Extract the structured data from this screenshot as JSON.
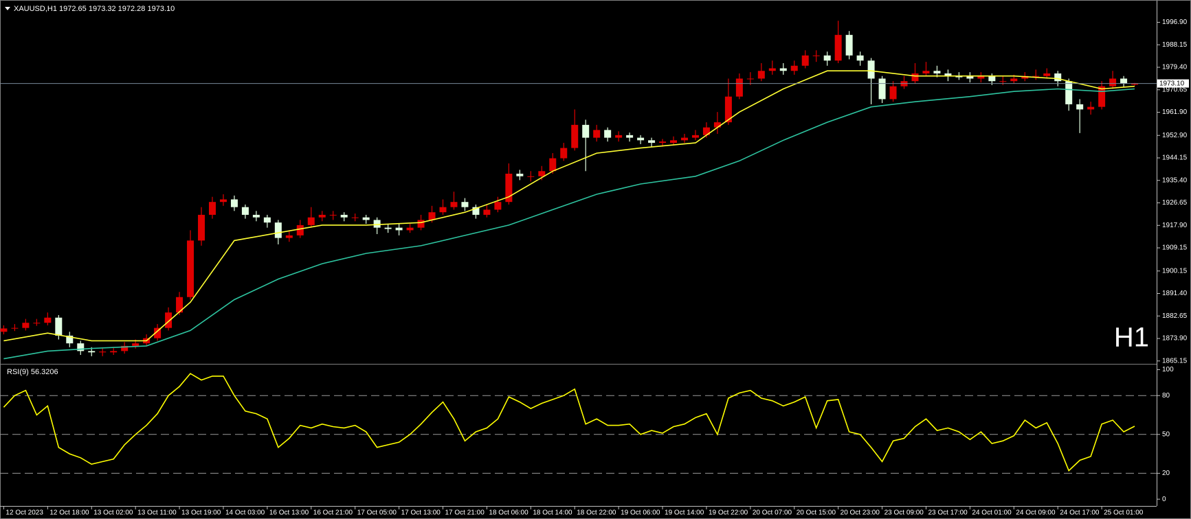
{
  "chart_data": [
    {
      "type": "candlestick",
      "title": "XAUUSD,H1  1972.65 1973.32 1972.28 1973.10",
      "annotation": "H1",
      "annotation_color": "#e00000",
      "up_color": "#e00000",
      "down_color": "#e2ffe2",
      "ohlc": [
        [
          1876.5,
          1879,
          1875.5,
          1877.8
        ],
        [
          1877.8,
          1879.5,
          1876.8,
          1878
        ],
        [
          1878,
          1881.5,
          1877,
          1880
        ],
        [
          1880,
          1881.5,
          1878.8,
          1880
        ],
        [
          1880,
          1884,
          1879,
          1882
        ],
        [
          1882,
          1883,
          1873.5,
          1875
        ],
        [
          1875,
          1876.5,
          1870.5,
          1872
        ],
        [
          1872,
          1873,
          1867.5,
          1869
        ],
        [
          1869,
          1870.5,
          1867,
          1868.5
        ],
        [
          1868.5,
          1870,
          1867,
          1868.8
        ],
        [
          1868.5,
          1870.5,
          1867.5,
          1869
        ],
        [
          1869,
          1872.5,
          1868,
          1871
        ],
        [
          1871,
          1873.5,
          1870,
          1872
        ],
        [
          1872,
          1875.5,
          1871,
          1874
        ],
        [
          1874,
          1879.5,
          1873,
          1878
        ],
        [
          1878,
          1886,
          1877,
          1884
        ],
        [
          1884,
          1892,
          1883,
          1890
        ],
        [
          1890,
          1916,
          1889,
          1912
        ],
        [
          1912,
          1925,
          1910,
          1922
        ],
        [
          1922,
          1929,
          1920.5,
          1927
        ],
        [
          1927,
          1930,
          1925.5,
          1928
        ],
        [
          1928,
          1929.5,
          1923.5,
          1925
        ],
        [
          1925,
          1926,
          1920.5,
          1922
        ],
        [
          1922,
          1923.5,
          1919.5,
          1921
        ],
        [
          1921,
          1922,
          1917,
          1919
        ],
        [
          1919,
          1920,
          1910.5,
          1913
        ],
        [
          1913,
          1916,
          1911.5,
          1914
        ],
        [
          1914,
          1920,
          1913,
          1918
        ],
        [
          1918,
          1925,
          1917,
          1921
        ],
        [
          1921,
          1923.5,
          1919.5,
          1922
        ],
        [
          1922,
          1923.5,
          1920,
          1922
        ],
        [
          1922,
          1923,
          1919.5,
          1921
        ],
        [
          1921,
          1922.5,
          1919.5,
          1921
        ],
        [
          1921,
          1922,
          1918.5,
          1920
        ],
        [
          1920,
          1921,
          1914.5,
          1917
        ],
        [
          1917,
          1918.5,
          1915,
          1916.5
        ],
        [
          1917,
          1918.5,
          1914,
          1916
        ],
        [
          1916,
          1918.5,
          1915,
          1917
        ],
        [
          1917,
          1922,
          1916,
          1920
        ],
        [
          1920,
          1925.5,
          1919,
          1923
        ],
        [
          1923,
          1928,
          1922,
          1925
        ],
        [
          1925,
          1931,
          1924,
          1927
        ],
        [
          1927,
          1928.5,
          1923.5,
          1925
        ],
        [
          1925,
          1926,
          1920.5,
          1922
        ],
        [
          1922,
          1926,
          1921,
          1924
        ],
        [
          1924,
          1929,
          1923,
          1927
        ],
        [
          1927,
          1942,
          1926,
          1938
        ],
        [
          1938,
          1939.5,
          1935.5,
          1937
        ],
        [
          1937,
          1939,
          1935,
          1937
        ],
        [
          1937,
          1941,
          1935.5,
          1939
        ],
        [
          1939,
          1946,
          1938,
          1944
        ],
        [
          1944,
          1950,
          1943,
          1948
        ],
        [
          1948,
          1963,
          1947,
          1957
        ],
        [
          1957,
          1959,
          1939,
          1952
        ],
        [
          1952,
          1957,
          1950.5,
          1955
        ],
        [
          1955,
          1956,
          1950.5,
          1952
        ],
        [
          1952,
          1954.5,
          1950.5,
          1953
        ],
        [
          1953,
          1954,
          1950.5,
          1952
        ],
        [
          1952,
          1953,
          1949.5,
          1951
        ],
        [
          1951,
          1952,
          1948.5,
          1950
        ],
        [
          1950,
          1951.5,
          1948.5,
          1950.5
        ],
        [
          1950,
          1952.5,
          1949,
          1951
        ],
        [
          1951,
          1953.5,
          1950,
          1952
        ],
        [
          1952,
          1955,
          1951,
          1953
        ],
        [
          1953,
          1958,
          1952,
          1956
        ],
        [
          1956,
          1962,
          1953.5,
          1958
        ],
        [
          1958,
          1975,
          1957,
          1968
        ],
        [
          1968,
          1977,
          1967,
          1975
        ],
        [
          1975,
          1977.5,
          1972.5,
          1975
        ],
        [
          1975,
          1981,
          1974,
          1978
        ],
        [
          1978,
          1982,
          1976.5,
          1979
        ],
        [
          1979,
          1981,
          1976.5,
          1978
        ],
        [
          1978,
          1982,
          1976.5,
          1980
        ],
        [
          1980,
          1986,
          1979,
          1984
        ],
        [
          1984,
          1986,
          1981.5,
          1984
        ],
        [
          1984,
          1985.5,
          1980,
          1982
        ],
        [
          1982,
          1997.5,
          1981,
          1992
        ],
        [
          1992,
          1993.5,
          1982.5,
          1984
        ],
        [
          1984,
          1985.5,
          1980,
          1982
        ],
        [
          1982,
          1983,
          1965,
          1975
        ],
        [
          1975,
          1976,
          1965.5,
          1967
        ],
        [
          1967,
          1974,
          1966,
          1972
        ],
        [
          1972,
          1976,
          1971,
          1974
        ],
        [
          1974,
          1981,
          1973,
          1977
        ],
        [
          1977,
          1981.5,
          1976,
          1978
        ],
        [
          1978,
          1980,
          1975.5,
          1977
        ],
        [
          1977,
          1978.5,
          1974,
          1976
        ],
        [
          1976,
          1977.5,
          1974.5,
          1975.5
        ],
        [
          1976,
          1977.5,
          1973.5,
          1975
        ],
        [
          1975,
          1977.5,
          1973.5,
          1976
        ],
        [
          1976,
          1977,
          1972.5,
          1974
        ],
        [
          1974,
          1976,
          1972.5,
          1974
        ],
        [
          1974,
          1976.5,
          1973,
          1975
        ],
        [
          1975,
          1977.5,
          1974,
          1976
        ],
        [
          1976,
          1978.5,
          1974.5,
          1976
        ],
        [
          1976,
          1979,
          1975,
          1977
        ],
        [
          1977,
          1978,
          1972,
          1974
        ],
        [
          1974,
          1975,
          1962.5,
          1965
        ],
        [
          1965,
          1967,
          1953.8,
          1963
        ],
        [
          1963,
          1966,
          1961,
          1964
        ],
        [
          1964,
          1974,
          1963,
          1972
        ],
        [
          1972,
          1978,
          1971,
          1975
        ],
        [
          1975,
          1976,
          1971.5,
          1973
        ],
        [
          1972.65,
          1973.32,
          1972.28,
          1973.1
        ]
      ],
      "overlays": [
        {
          "color": "#ffff33",
          "x": [
            0,
            4,
            8,
            13,
            17,
            21,
            25,
            29,
            33,
            38,
            42,
            46,
            50,
            54,
            58,
            63,
            67,
            71,
            75,
            79,
            83,
            88,
            92,
            96,
            100,
            103
          ],
          "values": [
            1873,
            1876,
            1873,
            1873,
            1888,
            1912,
            1915,
            1918,
            1918,
            1919,
            1923,
            1929,
            1939,
            1946,
            1948,
            1950,
            1962,
            1971,
            1978,
            1978,
            1976,
            1976,
            1976,
            1975,
            1971,
            1972
          ]
        },
        {
          "color": "#2ec4a0",
          "x": [
            0,
            4,
            8,
            13,
            17,
            21,
            25,
            29,
            33,
            38,
            42,
            46,
            50,
            54,
            58,
            63,
            67,
            71,
            75,
            79,
            83,
            88,
            92,
            96,
            100,
            103
          ],
          "values": [
            1866,
            1869,
            1870,
            1871,
            1877,
            1889,
            1897,
            1903,
            1907,
            1910,
            1914,
            1918,
            1924,
            1930,
            1934,
            1937,
            1943,
            1951,
            1958,
            1964,
            1966,
            1968,
            1970,
            1971,
            1970,
            1971
          ]
        }
      ],
      "price_line": {
        "value": 1973.1,
        "label": "1973.10"
      },
      "xlim": [
        -0.34,
        105
      ],
      "xticks": [
        {
          "value": 0,
          "label": "12 Oct 2023"
        },
        {
          "value": 4,
          "label": "12 Oct 18:00"
        },
        {
          "value": 8,
          "label": "13 Oct 02:00"
        },
        {
          "value": 12,
          "label": "13 Oct 11:00"
        },
        {
          "value": 16,
          "label": "13 Oct 19:00"
        },
        {
          "value": 20,
          "label": "14 Oct 03:00"
        },
        {
          "value": 24,
          "label": "16 Oct 13:00"
        },
        {
          "value": 28,
          "label": "16 Oct 21:00"
        },
        {
          "value": 32,
          "label": "17 Oct 05:00"
        },
        {
          "value": 36,
          "label": "17 Oct 13:00"
        },
        {
          "value": 40,
          "label": "17 Oct 21:00"
        },
        {
          "value": 44,
          "label": "18 Oct 06:00"
        },
        {
          "value": 48,
          "label": "18 Oct 14:00"
        },
        {
          "value": 52,
          "label": "18 Oct 22:00"
        },
        {
          "value": 56,
          "label": "19 Oct 06:00"
        },
        {
          "value": 60,
          "label": "19 Oct 14:00"
        },
        {
          "value": 64,
          "label": "19 Oct 22:00"
        },
        {
          "value": 68,
          "label": "20 Oct 07:00"
        },
        {
          "value": 72,
          "label": "20 Oct 15:00"
        },
        {
          "value": 76,
          "label": "20 Oct 23:00"
        },
        {
          "value": 80,
          "label": "23 Oct 09:00"
        },
        {
          "value": 84,
          "label": "23 Oct 17:00"
        },
        {
          "value": 88,
          "label": "24 Oct 01:00"
        },
        {
          "value": 92,
          "label": "24 Oct 09:00"
        },
        {
          "value": 96,
          "label": "24 Oct 17:00"
        },
        {
          "value": 100,
          "label": "25 Oct 01:00"
        }
      ],
      "ylim": [
        1864.56,
        2003.97
      ],
      "yticks": [
        1865.15,
        {
          "value": 1873.9,
          "label": "1873.90"
        },
        1882.65,
        {
          "value": 1891.4,
          "label": "1891.40"
        },
        1900.15,
        1909.15,
        {
          "value": 1917.9,
          "label": "1917.90"
        },
        1926.65,
        {
          "value": 1935.4,
          "label": "1935.40"
        },
        1944.15,
        {
          "value": 1952.9,
          "label": "1952.90"
        },
        {
          "value": 1961.9,
          "label": "1961.90"
        },
        1970.65,
        {
          "value": 1979.4,
          "label": "1979.40"
        },
        1988.15,
        {
          "value": 1996.9,
          "label": "1996.90"
        }
      ],
      "grid": false
    },
    {
      "type": "line",
      "title": "RSI(9) 56.3206",
      "color": "#ffff00",
      "values": [
        71,
        80,
        84,
        65,
        72,
        40,
        35,
        32,
        27,
        29,
        31,
        42,
        50,
        57,
        66,
        80,
        87,
        97,
        92,
        95,
        95,
        80,
        68,
        66,
        62,
        40,
        47,
        57,
        55,
        58,
        56,
        55,
        57,
        52,
        40,
        42,
        44,
        50,
        58,
        67,
        75,
        62,
        45,
        52,
        55,
        62,
        79,
        75,
        70,
        74,
        77,
        80,
        85,
        58,
        62,
        57,
        57,
        58,
        50,
        53,
        51,
        56,
        58,
        63,
        66,
        50,
        78,
        82,
        84,
        78,
        76,
        72,
        75,
        79,
        55,
        76,
        77,
        52,
        50,
        40,
        29,
        45,
        47,
        56,
        62,
        53,
        55,
        52,
        46,
        52,
        43,
        45,
        49,
        61,
        55,
        59,
        43,
        22,
        30,
        33,
        58,
        61,
        52,
        56.3206
      ],
      "xlim": [
        -0.34,
        105
      ],
      "ylim": [
        -4.7,
        102.9
      ],
      "yticks": [
        0,
        20,
        50,
        80,
        100
      ],
      "levels": [
        20,
        50,
        80
      ]
    }
  ]
}
